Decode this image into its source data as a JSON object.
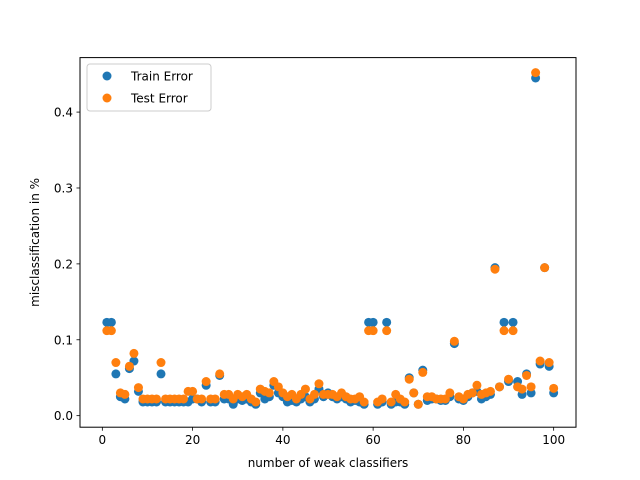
{
  "chart_data": {
    "type": "scatter",
    "title": "",
    "xlabel": "number of weak classifiers",
    "ylabel": "misclassification in %",
    "xlim": [
      -4.95,
      104.95
    ],
    "ylim": [
      -0.0152,
      0.4718
    ],
    "xticks": [
      0,
      20,
      40,
      60,
      80,
      100
    ],
    "yticks": [
      0.0,
      0.1,
      0.2,
      0.3,
      0.4
    ],
    "xtick_labels": [
      "0",
      "20",
      "40",
      "60",
      "80",
      "100"
    ],
    "ytick_labels": [
      "0.0",
      "0.1",
      "0.2",
      "0.3",
      "0.4"
    ],
    "grid": false,
    "legend_position": "top-left",
    "series": [
      {
        "name": "Train Error",
        "color": "#1f77b4",
        "x": [
          1,
          2,
          3,
          4,
          5,
          6,
          7,
          8,
          9,
          10,
          11,
          12,
          13,
          14,
          15,
          16,
          17,
          18,
          19,
          20,
          21,
          22,
          23,
          24,
          25,
          26,
          27,
          28,
          29,
          30,
          31,
          32,
          33,
          34,
          35,
          36,
          37,
          38,
          39,
          40,
          41,
          42,
          43,
          44,
          45,
          46,
          47,
          48,
          49,
          50,
          51,
          52,
          53,
          54,
          55,
          56,
          57,
          58,
          59,
          60,
          61,
          62,
          63,
          64,
          65,
          66,
          67,
          68,
          69,
          70,
          71,
          72,
          73,
          74,
          75,
          76,
          77,
          78,
          79,
          80,
          81,
          82,
          83,
          84,
          85,
          86,
          87,
          88,
          89,
          90,
          91,
          92,
          93,
          94,
          95,
          96,
          97,
          98,
          99,
          100
        ],
        "y": [
          0.123,
          0.123,
          0.055,
          0.025,
          0.022,
          0.062,
          0.072,
          0.032,
          0.018,
          0.018,
          0.018,
          0.018,
          0.055,
          0.018,
          0.018,
          0.018,
          0.018,
          0.018,
          0.018,
          0.022,
          0.022,
          0.018,
          0.04,
          0.018,
          0.018,
          0.053,
          0.022,
          0.022,
          0.015,
          0.022,
          0.02,
          0.022,
          0.018,
          0.015,
          0.03,
          0.022,
          0.025,
          0.04,
          0.03,
          0.025,
          0.018,
          0.02,
          0.018,
          0.022,
          0.025,
          0.018,
          0.022,
          0.035,
          0.025,
          0.03,
          0.025,
          0.022,
          0.025,
          0.022,
          0.018,
          0.02,
          0.018,
          0.015,
          0.123,
          0.123,
          0.015,
          0.018,
          0.123,
          0.015,
          0.018,
          0.018,
          0.015,
          0.05,
          0.03,
          0.015,
          0.06,
          0.02,
          0.022,
          0.022,
          0.02,
          0.02,
          0.025,
          0.095,
          0.022,
          0.02,
          0.025,
          0.03,
          0.032,
          0.022,
          0.025,
          0.028,
          0.195,
          0.038,
          0.123,
          0.045,
          0.123,
          0.045,
          0.028,
          0.055,
          0.03,
          0.445,
          0.068,
          0.195,
          0.065,
          0.03
        ]
      },
      {
        "name": "Test Error",
        "color": "#ff7f0e",
        "x": [
          1,
          2,
          3,
          4,
          5,
          6,
          7,
          8,
          9,
          10,
          11,
          12,
          13,
          14,
          15,
          16,
          17,
          18,
          19,
          20,
          21,
          22,
          23,
          24,
          25,
          26,
          27,
          28,
          29,
          30,
          31,
          32,
          33,
          34,
          35,
          36,
          37,
          38,
          39,
          40,
          41,
          42,
          43,
          44,
          45,
          46,
          47,
          48,
          49,
          50,
          51,
          52,
          53,
          54,
          55,
          56,
          57,
          58,
          59,
          60,
          61,
          62,
          63,
          64,
          65,
          66,
          67,
          68,
          69,
          70,
          71,
          72,
          73,
          74,
          75,
          76,
          77,
          78,
          79,
          80,
          81,
          82,
          83,
          84,
          85,
          86,
          87,
          88,
          89,
          90,
          91,
          92,
          93,
          94,
          95,
          96,
          97,
          98,
          99,
          100
        ],
        "y": [
          0.112,
          0.112,
          0.07,
          0.03,
          0.028,
          0.065,
          0.082,
          0.037,
          0.022,
          0.022,
          0.022,
          0.022,
          0.07,
          0.022,
          0.022,
          0.022,
          0.022,
          0.022,
          0.032,
          0.032,
          0.022,
          0.022,
          0.045,
          0.022,
          0.022,
          0.055,
          0.028,
          0.028,
          0.022,
          0.028,
          0.025,
          0.028,
          0.022,
          0.018,
          0.035,
          0.032,
          0.03,
          0.045,
          0.038,
          0.03,
          0.025,
          0.028,
          0.022,
          0.028,
          0.035,
          0.022,
          0.028,
          0.042,
          0.028,
          0.028,
          0.028,
          0.025,
          0.03,
          0.025,
          0.022,
          0.022,
          0.025,
          0.018,
          0.112,
          0.112,
          0.018,
          0.022,
          0.112,
          0.018,
          0.028,
          0.022,
          0.018,
          0.048,
          0.03,
          0.015,
          0.057,
          0.025,
          0.025,
          0.022,
          0.022,
          0.022,
          0.03,
          0.098,
          0.025,
          0.022,
          0.028,
          0.03,
          0.04,
          0.028,
          0.03,
          0.032,
          0.193,
          0.038,
          0.112,
          0.048,
          0.112,
          0.038,
          0.035,
          0.053,
          0.038,
          0.452,
          0.072,
          0.195,
          0.07,
          0.036
        ]
      }
    ]
  }
}
